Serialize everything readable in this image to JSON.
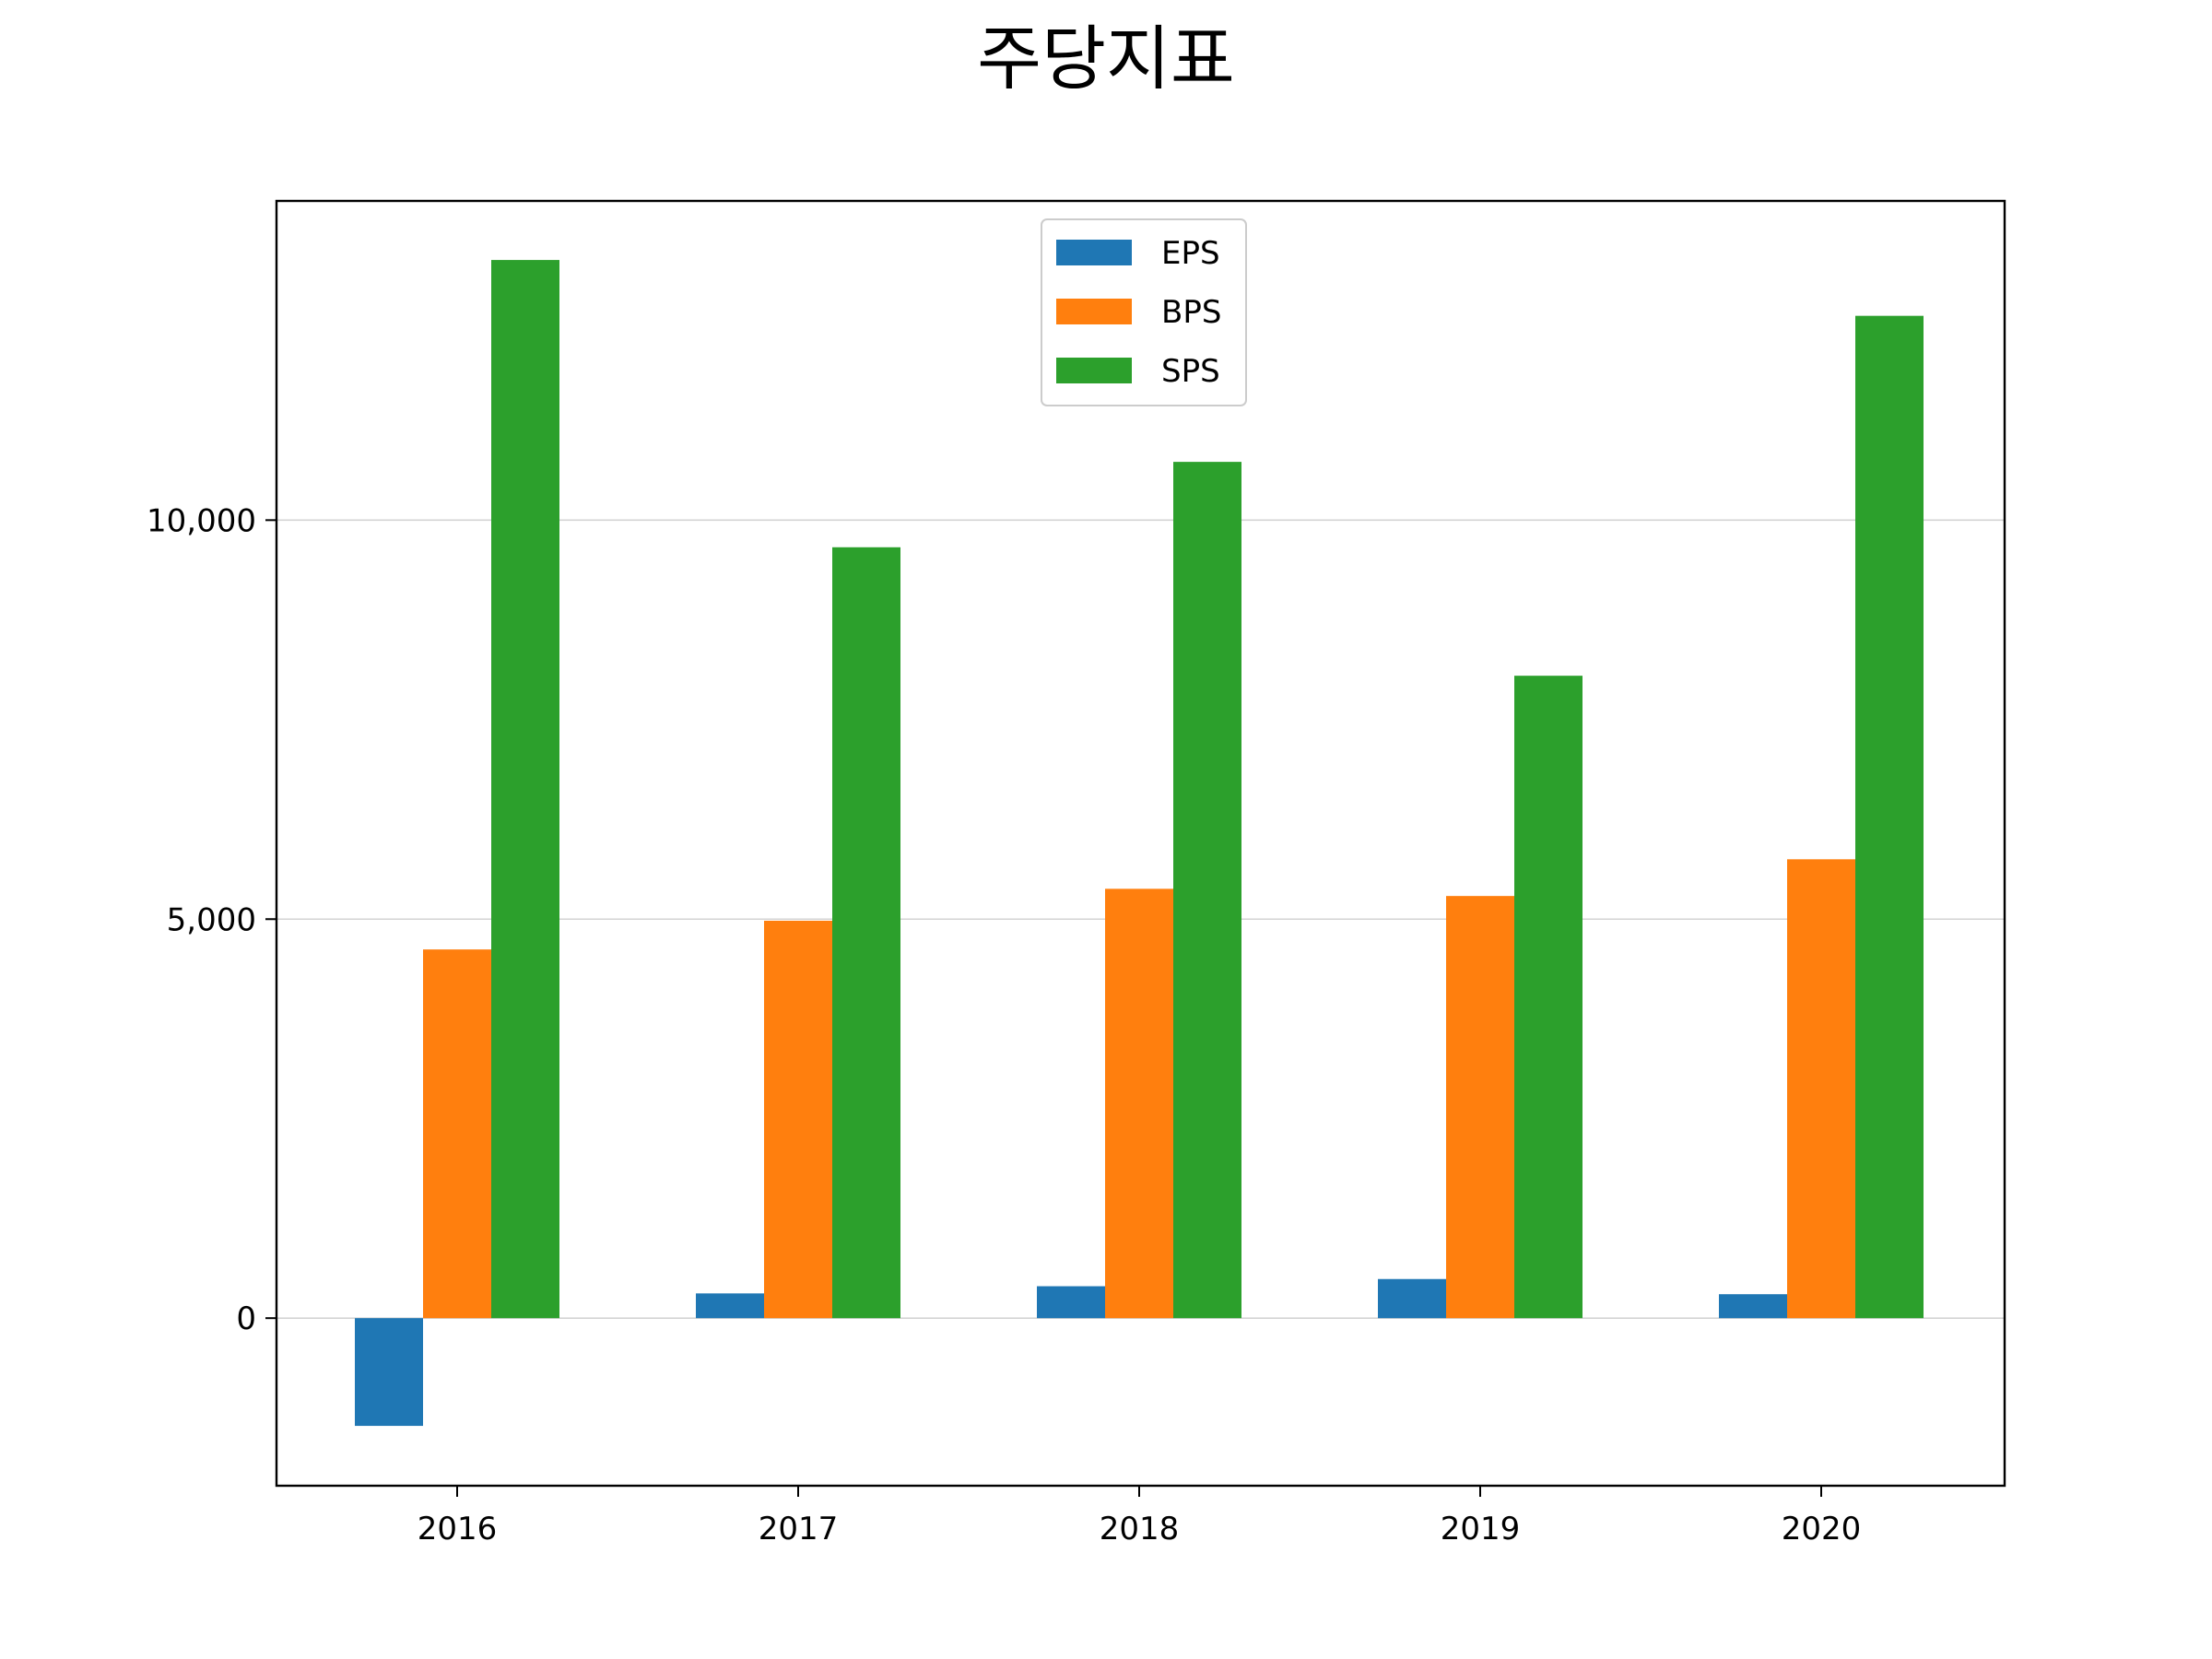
{
  "chart_data": {
    "type": "bar",
    "title": "주당지표",
    "xlabel": "",
    "ylabel": "",
    "categories": [
      "2016",
      "2017",
      "2018",
      "2019",
      "2020"
    ],
    "series": [
      {
        "name": "EPS",
        "color": "#1f77b4",
        "values": [
          -1350,
          310,
          400,
          490,
          300
        ]
      },
      {
        "name": "BPS",
        "color": "#ff7f0e",
        "values": [
          4620,
          4980,
          5380,
          5290,
          5750
        ]
      },
      {
        "name": "SPS",
        "color": "#2ca02c",
        "values": [
          13260,
          9660,
          10730,
          8050,
          12560
        ]
      }
    ],
    "ylim": [
      -2100,
      14000
    ],
    "yticks": [
      0,
      5000,
      10000
    ],
    "ytick_labels": [
      "0",
      "5,000",
      "10,000"
    ],
    "grid": {
      "y": true,
      "x": false
    },
    "legend_position": "upper-center"
  }
}
